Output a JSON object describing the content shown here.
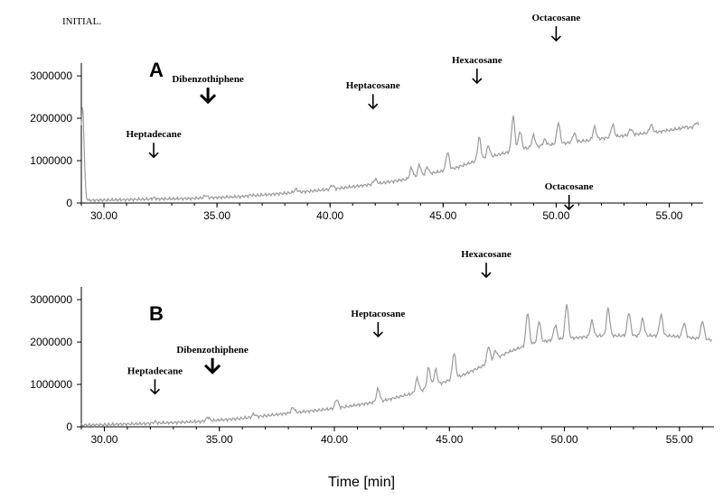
{
  "header": {
    "label": "INITIAL."
  },
  "xlabel": "Time [min]",
  "colors": {
    "trace": "#9a9a9a",
    "axis": "#000000",
    "text": "#000000"
  },
  "chart_data": [
    {
      "type": "line",
      "panel_label": "A",
      "xlim": [
        29,
        56.5
      ],
      "ylim": [
        0,
        3300000
      ],
      "xticks": [
        30,
        35,
        40,
        45,
        50,
        55
      ],
      "xtick_labels": [
        "30.00",
        "35.00",
        "40.00",
        "45.00",
        "50.00",
        "55.00"
      ],
      "yticks": [
        0,
        1000000,
        2000000,
        3000000
      ],
      "ytick_labels": [
        "0",
        "1000000",
        "2000000",
        "3000000"
      ],
      "baseline": [
        [
          29.0,
          60000
        ],
        [
          30.0,
          70000
        ],
        [
          32.0,
          90000
        ],
        [
          34.0,
          110000
        ],
        [
          36.0,
          150000
        ],
        [
          38.0,
          230000
        ],
        [
          40.0,
          320000
        ],
        [
          42.0,
          450000
        ],
        [
          43.5,
          570000
        ],
        [
          44.5,
          700000
        ],
        [
          45.5,
          820000
        ],
        [
          46.5,
          1000000
        ],
        [
          47.5,
          1150000
        ],
        [
          48.5,
          1280000
        ],
        [
          49.5,
          1360000
        ],
        [
          50.5,
          1420000
        ],
        [
          51.5,
          1480000
        ],
        [
          52.5,
          1560000
        ],
        [
          53.5,
          1620000
        ],
        [
          54.5,
          1680000
        ],
        [
          55.5,
          1760000
        ],
        [
          56.3,
          1800000
        ]
      ],
      "peaks": [
        [
          29.05,
          2300000
        ],
        [
          32.2,
          120000
        ],
        [
          34.5,
          180000
        ],
        [
          36.5,
          190000
        ],
        [
          38.5,
          330000
        ],
        [
          40.1,
          420000
        ],
        [
          42.0,
          560000
        ],
        [
          43.6,
          830000
        ],
        [
          43.95,
          900000
        ],
        [
          44.3,
          850000
        ],
        [
          45.2,
          1200000
        ],
        [
          46.6,
          1550000
        ],
        [
          47.0,
          1350000
        ],
        [
          48.1,
          2050000
        ],
        [
          48.4,
          1700000
        ],
        [
          49.0,
          1600000
        ],
        [
          49.5,
          1500000
        ],
        [
          50.1,
          1900000
        ],
        [
          50.8,
          1650000
        ],
        [
          51.7,
          1800000
        ],
        [
          52.5,
          1850000
        ],
        [
          53.3,
          1750000
        ],
        [
          54.2,
          1850000
        ],
        [
          55.0,
          1700000
        ],
        [
          55.7,
          1800000
        ],
        [
          56.2,
          1900000
        ]
      ],
      "annotations": [
        {
          "text": "Heptadecane",
          "x": 32.2,
          "y": 1550000
        },
        {
          "text": "Dibenzothiphene",
          "x": 34.6,
          "y": 2850000
        },
        {
          "text": "Heptacosane",
          "x": 41.9,
          "y": 2700000
        },
        {
          "text": "Hexacosane",
          "x": 46.5,
          "y": 3300000
        },
        {
          "text": "Octacosane",
          "x": 50.0,
          "y": 4300000
        }
      ]
    },
    {
      "type": "line",
      "panel_label": "B",
      "xlim": [
        29,
        56.5
      ],
      "ylim": [
        0,
        3300000
      ],
      "xticks": [
        30,
        35,
        40,
        45,
        50,
        55
      ],
      "xtick_labels": [
        "30.00",
        "35.00",
        "40.00",
        "45.00",
        "50.00",
        "55.00"
      ],
      "yticks": [
        0,
        1000000,
        2000000,
        3000000
      ],
      "ytick_labels": [
        "0",
        "1000000",
        "2000000",
        "3000000"
      ],
      "baseline": [
        [
          29.0,
          40000
        ],
        [
          30.0,
          50000
        ],
        [
          32.0,
          80000
        ],
        [
          34.0,
          120000
        ],
        [
          36.0,
          200000
        ],
        [
          38.0,
          320000
        ],
        [
          40.0,
          430000
        ],
        [
          42.0,
          600000
        ],
        [
          43.5,
          800000
        ],
        [
          44.5,
          1000000
        ],
        [
          45.5,
          1200000
        ],
        [
          46.5,
          1450000
        ],
        [
          47.5,
          1750000
        ],
        [
          48.5,
          1950000
        ],
        [
          49.5,
          2050000
        ],
        [
          50.5,
          2100000
        ],
        [
          51.5,
          2150000
        ],
        [
          52.5,
          2150000
        ],
        [
          53.5,
          2150000
        ],
        [
          54.5,
          2150000
        ],
        [
          55.5,
          2100000
        ],
        [
          56.4,
          2050000
        ]
      ],
      "peaks": [
        [
          32.2,
          120000
        ],
        [
          34.5,
          230000
        ],
        [
          36.5,
          300000
        ],
        [
          38.2,
          460000
        ],
        [
          40.1,
          650000
        ],
        [
          41.9,
          900000
        ],
        [
          43.6,
          1150000
        ],
        [
          44.1,
          1400000
        ],
        [
          44.4,
          1350000
        ],
        [
          45.2,
          1750000
        ],
        [
          46.7,
          1900000
        ],
        [
          47.0,
          1800000
        ],
        [
          48.4,
          2700000
        ],
        [
          48.9,
          2500000
        ],
        [
          49.6,
          2400000
        ],
        [
          50.1,
          2900000
        ],
        [
          51.2,
          2500000
        ],
        [
          51.9,
          2800000
        ],
        [
          52.8,
          2700000
        ],
        [
          53.4,
          2550000
        ],
        [
          54.2,
          2650000
        ],
        [
          55.2,
          2450000
        ],
        [
          56.0,
          2500000
        ]
      ],
      "annotations": [
        {
          "text": "Heptadecane",
          "x": 32.2,
          "y": 1250000
        },
        {
          "text": "Dibenzothiphene",
          "x": 34.7,
          "y": 1750000
        },
        {
          "text": "Heptacosane",
          "x": 41.9,
          "y": 2600000
        },
        {
          "text": "Hexacosane",
          "x": 46.6,
          "y": 4000000
        },
        {
          "text": "Octacosane",
          "x": 50.2,
          "y": 5600000
        }
      ]
    }
  ]
}
